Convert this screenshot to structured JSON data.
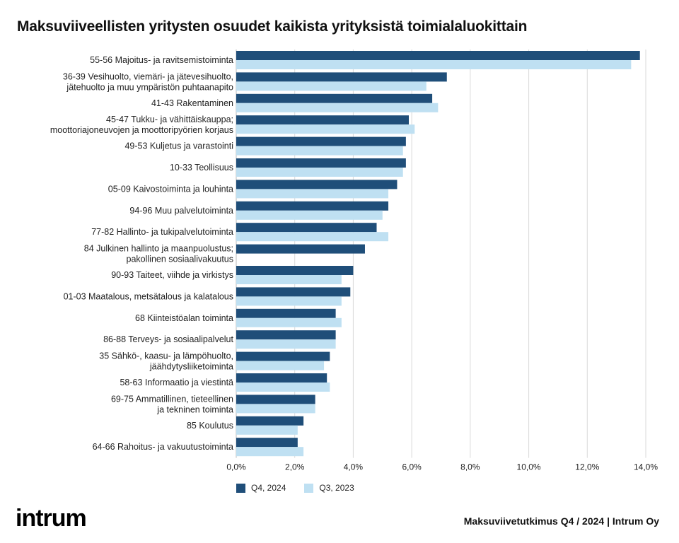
{
  "title": "Maksuviiveellisten yritysten osuudet kaikista yrityksistä toimialaluokittain",
  "footer": {
    "logo_text": "intrum",
    "source": "Maksuviivetutkimus Q4 / 2024 | Intrum Oy"
  },
  "chart_data": {
    "type": "bar",
    "orientation": "horizontal",
    "title": "Maksuviiveellisten yritysten osuudet kaikista yrityksistä toimialaluokittain",
    "categories": [
      [
        "55-56 Majoitus- ja ravitsemistoiminta"
      ],
      [
        "36-39 Vesihuolto, viemäri- ja jätevesihuolto,",
        "jätehuolto ja muu ympäristön puhtaanapito"
      ],
      [
        "41-43 Rakentaminen"
      ],
      [
        "45-47 Tukku- ja vähittäiskauppa;",
        "moottoriajoneuvojen ja moottoripyörien korjaus"
      ],
      [
        "49-53 Kuljetus ja varastointi"
      ],
      [
        "10-33 Teollisuus"
      ],
      [
        "05-09 Kaivostoiminta ja louhinta"
      ],
      [
        "94-96 Muu palvelutoiminta"
      ],
      [
        "77-82 Hallinto- ja tukipalvelutoiminta"
      ],
      [
        "84 Julkinen hallinto ja maanpuolustus;",
        "pakollinen sosiaalivakuutus"
      ],
      [
        "90-93 Taiteet, viihde ja virkistys"
      ],
      [
        "01-03 Maatalous, metsätalous ja kalatalous"
      ],
      [
        "68 Kiinteistöalan toiminta"
      ],
      [
        "86-88 Terveys- ja sosiaalipalvelut"
      ],
      [
        "35 Sähkö-, kaasu- ja lämpöhuolto,",
        "jäähdytysliiketoiminta"
      ],
      [
        "58-63 Informaatio ja viestintä"
      ],
      [
        "69-75 Ammatillinen, tieteellinen",
        "ja tekninen toiminta"
      ],
      [
        "85 Koulutus"
      ],
      [
        "64-66 Rahoitus- ja vakuutustoiminta"
      ]
    ],
    "series": [
      {
        "name": "Q4, 2024",
        "color": "#1f4e79",
        "values": [
          13.8,
          7.2,
          6.7,
          5.9,
          5.8,
          5.8,
          5.5,
          5.2,
          4.8,
          4.4,
          4.0,
          3.9,
          3.4,
          3.4,
          3.2,
          3.1,
          2.7,
          2.3,
          2.1
        ]
      },
      {
        "name": "Q3, 2023",
        "color": "#bfe0f2",
        "values": [
          13.5,
          6.5,
          6.9,
          6.1,
          5.7,
          5.7,
          5.2,
          5.0,
          5.2,
          null,
          3.6,
          3.6,
          3.6,
          3.4,
          3.0,
          3.2,
          2.7,
          2.1,
          2.3
        ]
      }
    ],
    "xlim": [
      0,
      14
    ],
    "xticks": [
      "0,0%",
      "2,0%",
      "4,0%",
      "6,0%",
      "8,0%",
      "10,0%",
      "12,0%",
      "14,0%"
    ],
    "unit": "%",
    "grid": "vertical",
    "legend": "bottom-left"
  }
}
